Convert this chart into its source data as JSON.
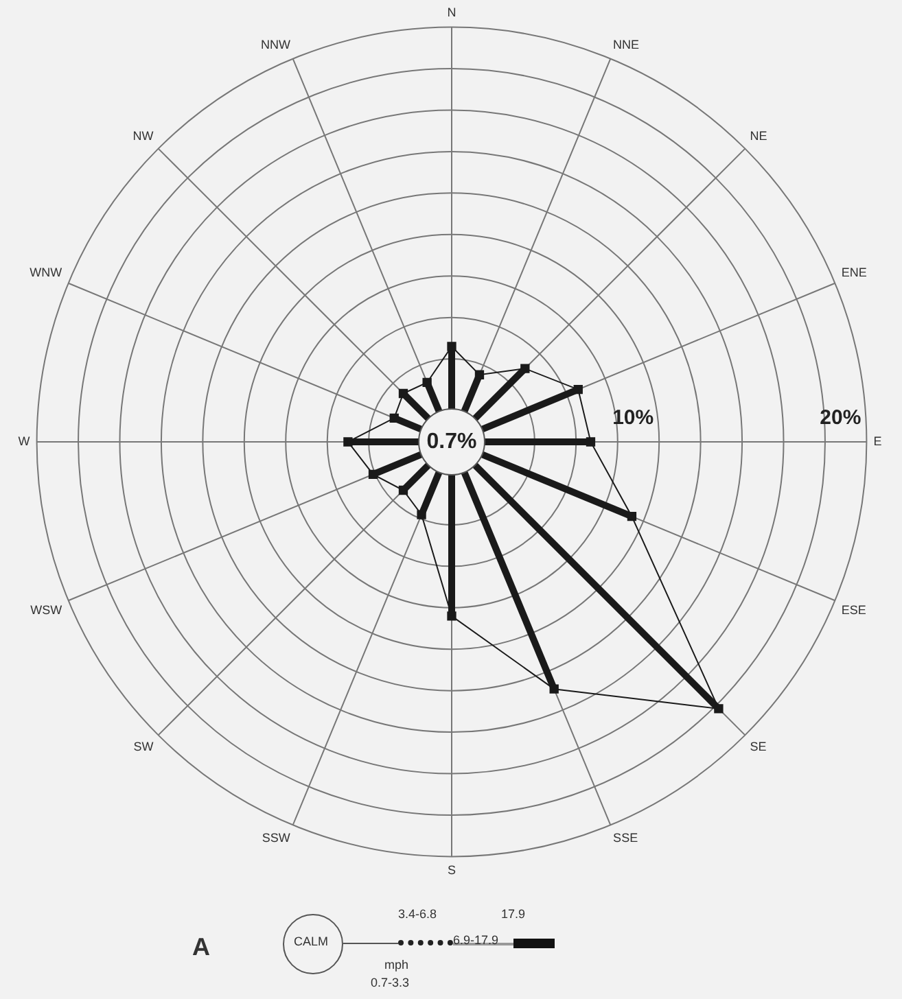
{
  "chart_data": {
    "type": "radar",
    "categories": [
      "N",
      "NNE",
      "NE",
      "ENE",
      "E",
      "ESE",
      "SE",
      "SSE",
      "S",
      "SSW",
      "SW",
      "WSW",
      "W",
      "WNW",
      "NW",
      "NNW"
    ],
    "series": [
      {
        "color": "#1a1a1a",
        "values": [
          4.6,
          3.5,
          5.0,
          6.6,
          6.7,
          9.4,
          18.2,
          12.9,
          8.4,
          3.8,
          3.3,
          4.1,
          5.0,
          3.0,
          3.3,
          3.1
        ]
      }
    ],
    "ylim": [
      0,
      20
    ],
    "yticks": [
      {
        "value": 10,
        "label": "10%"
      },
      {
        "value": 20,
        "label": "20%"
      }
    ],
    "grid": true,
    "legend": false,
    "marker": "square",
    "annotations": [
      "0.7%",
      "A",
      "CALM",
      "3.4-6.8",
      "17.9",
      "mph",
      "6.9-17.9",
      "0.7-3.3"
    ]
  }
}
